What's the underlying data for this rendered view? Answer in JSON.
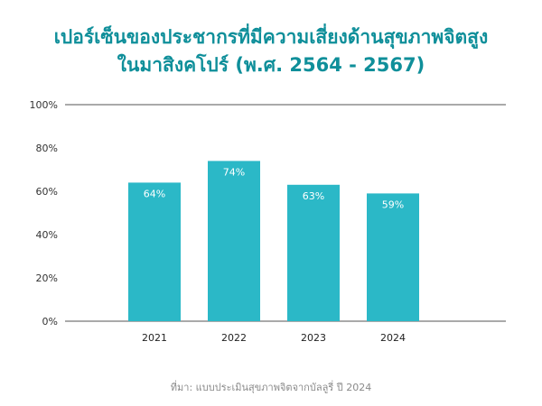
{
  "chart_data": {
    "type": "bar",
    "title_line1": "เปอร์เซ็นของประชากรที่มีความเสี่ยงด้านสุขภาพจิตสูง",
    "title_line2": "ในมาสิงคโปร์ (พ.ศ. 2564 - 2567)",
    "categories": [
      "2021",
      "2022",
      "2023",
      "2024"
    ],
    "values": [
      64,
      74,
      63,
      59
    ],
    "value_labels": [
      "64%",
      "74%",
      "63%",
      "59%"
    ],
    "ylim": [
      0,
      100
    ],
    "yticks": [
      "0%",
      "20%",
      "40%",
      "60%",
      "80%",
      "100%"
    ],
    "grid": "top and baseline only",
    "bar_color": "#2bb8c7",
    "source": "ที่มา: แบบประเมินสุขภาพจิตจากบัลลูรี่ ปี 2024"
  }
}
